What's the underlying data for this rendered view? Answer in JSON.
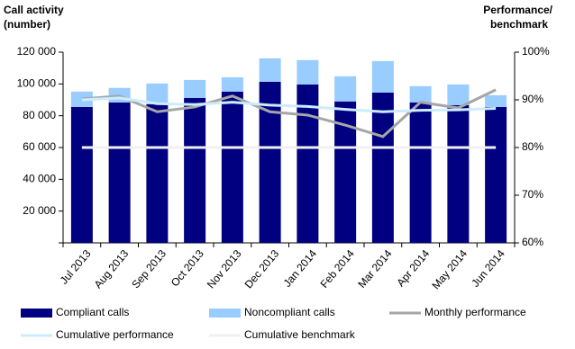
{
  "chart_data": {
    "type": "bar",
    "y_title": [
      "Call activity",
      "(number)"
    ],
    "y2_title": [
      "Performance/",
      "benchmark"
    ],
    "categories": [
      "Jul 2013",
      "Aug 2013",
      "Sep 2013",
      "Oct 2013",
      "Nov 2013",
      "Dec 2013",
      "Jan 2014",
      "Feb 2014",
      "Mar 2014",
      "Apr 2014",
      "May 2014",
      "Jun 2014"
    ],
    "series": [
      {
        "name": "Compliant calls",
        "type": "bar",
        "color": "#000080",
        "values": [
          85500,
          88400,
          87300,
          91200,
          95200,
          101400,
          99700,
          89000,
          94600,
          88400,
          86700,
          85500
        ]
      },
      {
        "name": "Noncompliant calls",
        "type": "bar",
        "color": "#99ccff",
        "values": [
          9700,
          9100,
          13000,
          11300,
          9000,
          14700,
          15300,
          15800,
          19800,
          10200,
          13000,
          7400
        ]
      },
      {
        "name": "Monthly performance",
        "type": "line",
        "axis": "y2",
        "color": "#a6a6a6",
        "values": [
          90.2,
          90.8,
          87.5,
          88.5,
          90.8,
          87.5,
          86.8,
          84.7,
          82.3,
          89.5,
          88.3,
          92.1
        ]
      },
      {
        "name": "Cumulative performance",
        "type": "line",
        "axis": "y2",
        "color": "#ccecff",
        "values": [
          90,
          90.4,
          89.2,
          89,
          89.5,
          88.9,
          88.6,
          88,
          87.5,
          87.8,
          87.9,
          88.2
        ]
      },
      {
        "name": "Cumulative benchmark",
        "type": "line",
        "axis": "y2",
        "color": "#f0f0f0",
        "values": [
          80,
          80,
          80,
          80,
          80,
          80,
          80,
          80,
          80,
          80,
          80,
          80
        ]
      }
    ],
    "ylim": [
      0,
      120000
    ],
    "yticks": [
      {
        "value": 20000,
        "label": "20 000"
      },
      {
        "value": 40000,
        "label": "40 000"
      },
      {
        "value": 60000,
        "label": "60 000"
      },
      {
        "value": 80000,
        "label": "80 000"
      },
      {
        "value": 100000,
        "label": "100 000"
      },
      {
        "value": 120000,
        "label": "120 000"
      }
    ],
    "y2lim": [
      60,
      100
    ],
    "y2ticks": [
      {
        "value": 60,
        "label": "60%"
      },
      {
        "value": 70,
        "label": "70%"
      },
      {
        "value": 80,
        "label": "80%"
      },
      {
        "value": 90,
        "label": "90%"
      },
      {
        "value": 100,
        "label": "100%"
      }
    ]
  }
}
